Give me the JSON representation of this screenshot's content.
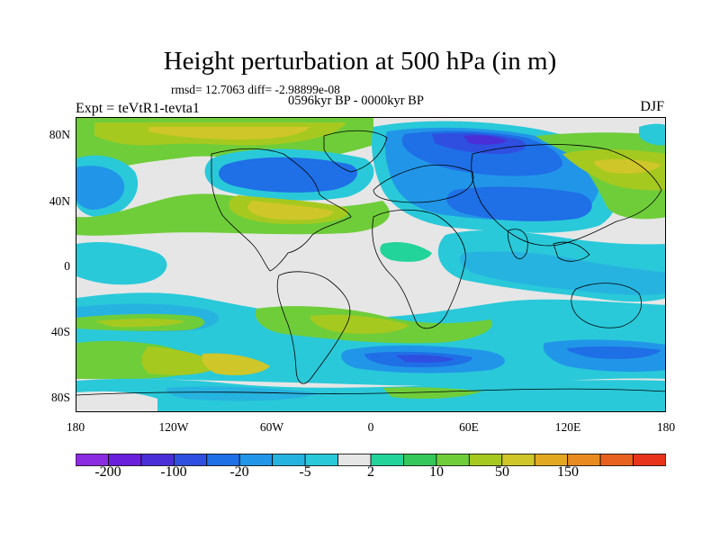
{
  "title": "Height perturbation at 500 hPa (in m)",
  "stats_line": "rmsd= 12.7063 diff= -2.98899e-08",
  "period": "0596kyr BP - 0000kyr BP",
  "experiment": "Expt = teVtR1-tevta1",
  "season": "DJF",
  "lat_ticks": [
    "80N",
    "40N",
    "0",
    "40S",
    "80S"
  ],
  "lon_ticks": [
    "180",
    "120W",
    "60W",
    "0",
    "60E",
    "120E",
    "180"
  ],
  "colorbar": {
    "labels": [
      "-200",
      "-100",
      "-20",
      "-5",
      "2",
      "10",
      "50",
      "150"
    ],
    "colors": [
      "#8b2be2",
      "#6a1fdc",
      "#4a2fd8",
      "#2e4fe0",
      "#1f6fe6",
      "#2196e8",
      "#27b3e0",
      "#29c9d9",
      "#e6e6e6",
      "#22d39a",
      "#34c85a",
      "#6fcd3a",
      "#a6c91f",
      "#cfc62a",
      "#e2a81f",
      "#e88a1f",
      "#e8611f",
      "#e8341a"
    ]
  },
  "palette": {
    "neutral": "#e6e6e6",
    "cyan": "#29c9d9",
    "lightblue": "#27b3e0",
    "blue": "#2196e8",
    "darkblue": "#1f6fe6",
    "deepblue": "#2e4fe0",
    "purple": "#4a2fd8",
    "green": "#6fcd3a",
    "yellowgreen": "#a6c91f",
    "olive": "#cfc62a",
    "teal": "#22d39a"
  }
}
